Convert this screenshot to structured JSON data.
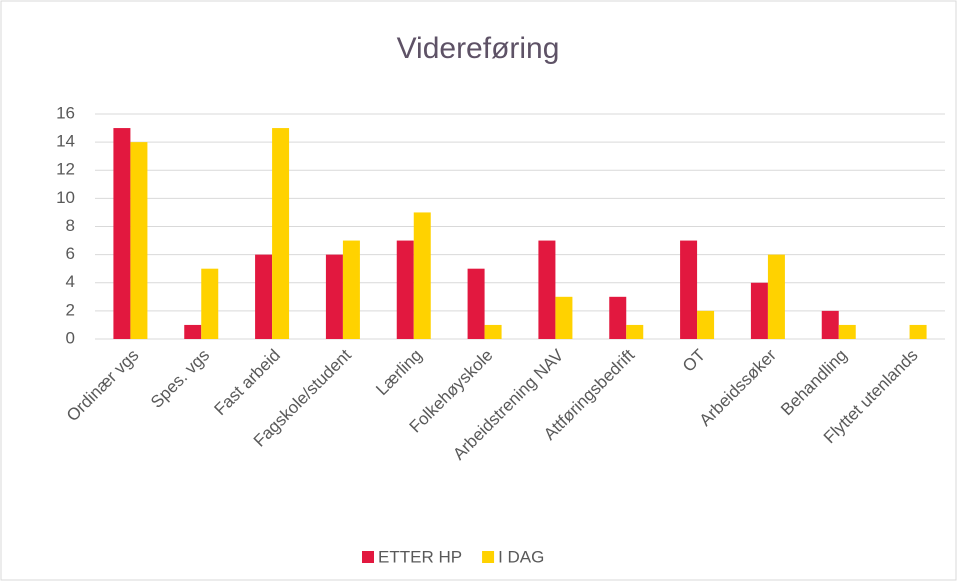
{
  "chart_data": {
    "type": "bar",
    "title": "Videreføring",
    "categories": [
      "Ordinær vgs",
      "Spes. vgs",
      "Fast arbeid",
      "Fagskole/student",
      "Lærling",
      "Folkehøyskole",
      "Arbeidstrening NAV",
      "Attføringsbedrift",
      "OT",
      "Arbeidssøker",
      "Behandling",
      "Flyttet utenlands"
    ],
    "series": [
      {
        "name": "ETTER HP",
        "color": "#e2183f",
        "values": [
          15,
          1,
          6,
          6,
          7,
          5,
          7,
          3,
          7,
          4,
          2,
          0
        ]
      },
      {
        "name": "I DAG",
        "color": "#ffd200",
        "values": [
          14,
          5,
          15,
          7,
          9,
          1,
          3,
          1,
          2,
          6,
          1,
          1
        ]
      }
    ],
    "ylim": [
      0,
      16
    ],
    "yticks": [
      0,
      2,
      4,
      6,
      8,
      10,
      12,
      14,
      16
    ],
    "grid": true,
    "legend": "bottom"
  }
}
